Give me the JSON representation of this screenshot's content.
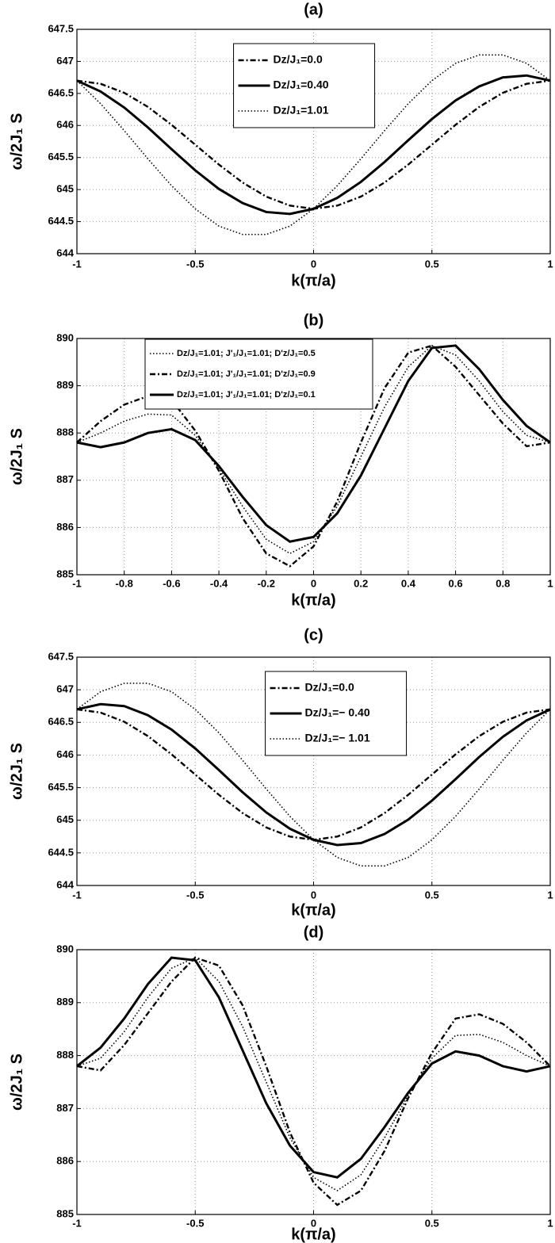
{
  "chart_data": [
    {
      "type": "line",
      "title": "(a)",
      "xlabel": "k(π/a)",
      "ylabel": "ω/2J₁ S",
      "x": [
        -1,
        -0.9,
        -0.8,
        -0.7,
        -0.6,
        -0.5,
        -0.4,
        -0.3,
        -0.2,
        -0.1,
        0,
        0.1,
        0.2,
        0.3,
        0.4,
        0.5,
        0.6,
        0.7,
        0.8,
        0.9,
        1
      ],
      "xlim": [
        -1,
        1
      ],
      "xticks": [
        -1,
        -0.5,
        0,
        0.5,
        1
      ],
      "ylim": [
        644,
        647.5
      ],
      "yticks": [
        644,
        644.5,
        645,
        645.5,
        646,
        646.5,
        647,
        647.5
      ],
      "grid": true,
      "legend": "upper center",
      "series": [
        {
          "name": "Dz/J₁=0.0",
          "color": "#000000",
          "linestyle": "dashdot",
          "values": [
            646.7,
            646.65,
            646.51,
            646.29,
            646.01,
            645.7,
            645.39,
            645.11,
            644.89,
            644.75,
            644.7,
            644.75,
            644.89,
            645.11,
            645.39,
            645.7,
            646.01,
            646.29,
            646.51,
            646.65,
            646.7
          ]
        },
        {
          "name": "Dz/J₁=0.40",
          "color": "#000000",
          "linestyle": "solid",
          "values": [
            646.7,
            646.53,
            646.28,
            645.97,
            645.63,
            645.3,
            645.01,
            644.79,
            644.65,
            644.62,
            644.7,
            644.87,
            645.12,
            645.43,
            645.77,
            646.1,
            646.39,
            646.61,
            646.75,
            646.78,
            646.7
          ]
        },
        {
          "name": "Dz/J₁=1.01",
          "color": "#000000",
          "linestyle": "dotted",
          "values": [
            646.7,
            646.34,
            645.92,
            645.48,
            645.06,
            644.7,
            644.43,
            644.3,
            644.3,
            644.43,
            644.7,
            645.06,
            645.48,
            645.92,
            646.34,
            646.7,
            646.97,
            647.1,
            647.1,
            646.97,
            646.7
          ]
        }
      ]
    },
    {
      "type": "line",
      "title": "(b)",
      "xlabel": "k(π/a)",
      "ylabel": "ω/2J₁ S",
      "x": [
        -1,
        -0.9,
        -0.8,
        -0.7,
        -0.6,
        -0.5,
        -0.4,
        -0.3,
        -0.2,
        -0.1,
        0,
        0.1,
        0.2,
        0.3,
        0.4,
        0.5,
        0.6,
        0.7,
        0.8,
        0.9,
        1
      ],
      "xlim": [
        -1,
        1
      ],
      "xticks": [
        -1,
        -0.8,
        -0.6,
        -0.4,
        -0.2,
        0,
        0.2,
        0.4,
        0.6,
        0.8,
        1
      ],
      "ylim": [
        885,
        890
      ],
      "yticks": [
        885,
        886,
        887,
        888,
        889,
        890
      ],
      "grid": true,
      "legend": "upper left",
      "series": [
        {
          "name": "Dz/J₁=1.01;  J'₁/J₁=1.01;  D'z/J₁=0.5",
          "color": "#000000",
          "linestyle": "dotted",
          "values": [
            887.8,
            888.0,
            888.25,
            888.4,
            888.38,
            887.95,
            887.25,
            886.45,
            885.75,
            885.45,
            885.7,
            886.45,
            887.5,
            888.55,
            889.4,
            889.85,
            889.65,
            889.1,
            888.45,
            887.95,
            887.8
          ]
        },
        {
          "name": "Dz/J₁=1.01;  J'₁/J₁=1.01;  D'z/J₁=0.9",
          "color": "#000000",
          "linestyle": "dashdot",
          "values": [
            887.8,
            888.25,
            888.6,
            888.78,
            888.7,
            888.05,
            887.2,
            886.2,
            885.45,
            885.18,
            885.6,
            886.55,
            887.8,
            888.95,
            889.7,
            889.85,
            889.4,
            888.8,
            888.2,
            887.72,
            887.8
          ]
        },
        {
          "name": "Dz/J₁=1.01;  J'₁/J₁=1.01;  D'z/J₁=0.1",
          "color": "#000000",
          "linestyle": "solid",
          "values": [
            887.8,
            887.7,
            887.8,
            888.0,
            888.08,
            887.85,
            887.3,
            886.65,
            886.05,
            885.7,
            885.8,
            886.3,
            887.1,
            888.1,
            889.1,
            889.8,
            889.85,
            889.35,
            888.7,
            888.15,
            887.8
          ]
        }
      ]
    },
    {
      "type": "line",
      "title": "(c)",
      "xlabel": "k(π/a)",
      "ylabel": "ω/2J₁ S",
      "x": [
        -1,
        -0.9,
        -0.8,
        -0.7,
        -0.6,
        -0.5,
        -0.4,
        -0.3,
        -0.2,
        -0.1,
        0,
        0.1,
        0.2,
        0.3,
        0.4,
        0.5,
        0.6,
        0.7,
        0.8,
        0.9,
        1
      ],
      "xlim": [
        -1,
        1
      ],
      "xticks": [
        -1,
        -0.5,
        0,
        0.5,
        1
      ],
      "ylim": [
        644,
        647.5
      ],
      "yticks": [
        644,
        644.5,
        645,
        645.5,
        646,
        646.5,
        647,
        647.5
      ],
      "grid": true,
      "legend": "upper center",
      "series": [
        {
          "name": "Dz/J₁=0.0",
          "color": "#000000",
          "linestyle": "dashdot",
          "values": [
            646.7,
            646.65,
            646.51,
            646.29,
            646.01,
            645.7,
            645.39,
            645.11,
            644.89,
            644.75,
            644.7,
            644.75,
            644.89,
            645.11,
            645.39,
            645.7,
            646.01,
            646.29,
            646.51,
            646.65,
            646.7
          ]
        },
        {
          "name": "Dz/J₁=− 0.40",
          "color": "#000000",
          "linestyle": "solid",
          "values": [
            646.7,
            646.78,
            646.75,
            646.61,
            646.39,
            646.1,
            645.77,
            645.43,
            645.12,
            644.87,
            644.7,
            644.62,
            644.65,
            644.79,
            645.01,
            645.3,
            645.63,
            645.97,
            646.28,
            646.53,
            646.7
          ]
        },
        {
          "name": "Dz/J₁=− 1.01",
          "color": "#000000",
          "linestyle": "dotted",
          "values": [
            646.7,
            646.97,
            647.1,
            647.1,
            646.97,
            646.7,
            646.34,
            645.92,
            645.48,
            645.06,
            644.7,
            644.43,
            644.3,
            644.3,
            644.43,
            644.7,
            645.06,
            645.48,
            645.92,
            646.34,
            646.7
          ]
        }
      ]
    },
    {
      "type": "line",
      "title": "(d)",
      "xlabel": "k(π/a)",
      "ylabel": "ω/2J₁ S",
      "x": [
        -1,
        -0.9,
        -0.8,
        -0.7,
        -0.6,
        -0.5,
        -0.4,
        -0.3,
        -0.2,
        -0.1,
        0,
        0.1,
        0.2,
        0.3,
        0.4,
        0.5,
        0.6,
        0.7,
        0.8,
        0.9,
        1
      ],
      "xlim": [
        -1,
        1
      ],
      "xticks": [
        -1,
        -0.5,
        0,
        0.5,
        1
      ],
      "ylim": [
        885,
        890
      ],
      "yticks": [
        885,
        886,
        887,
        888,
        889,
        890
      ],
      "grid": true,
      "series": [
        {
          "color": "#000000",
          "linestyle": "dotted",
          "values": [
            887.8,
            887.95,
            888.45,
            889.1,
            889.65,
            889.85,
            889.4,
            888.55,
            887.5,
            886.45,
            885.7,
            885.45,
            885.75,
            886.45,
            887.25,
            887.95,
            888.38,
            888.4,
            888.25,
            888.0,
            887.8
          ]
        },
        {
          "color": "#000000",
          "linestyle": "dashdot",
          "values": [
            887.8,
            887.72,
            888.2,
            888.8,
            889.4,
            889.85,
            889.7,
            888.95,
            887.8,
            886.55,
            885.6,
            885.18,
            885.45,
            886.2,
            887.2,
            888.05,
            888.7,
            888.78,
            888.6,
            888.25,
            887.8
          ]
        },
        {
          "color": "#000000",
          "linestyle": "solid",
          "values": [
            887.8,
            888.15,
            888.7,
            889.35,
            889.85,
            889.8,
            889.1,
            888.1,
            887.1,
            886.3,
            885.8,
            885.7,
            886.05,
            886.65,
            887.3,
            887.85,
            888.08,
            888.0,
            887.8,
            887.7,
            887.8
          ]
        }
      ]
    }
  ]
}
